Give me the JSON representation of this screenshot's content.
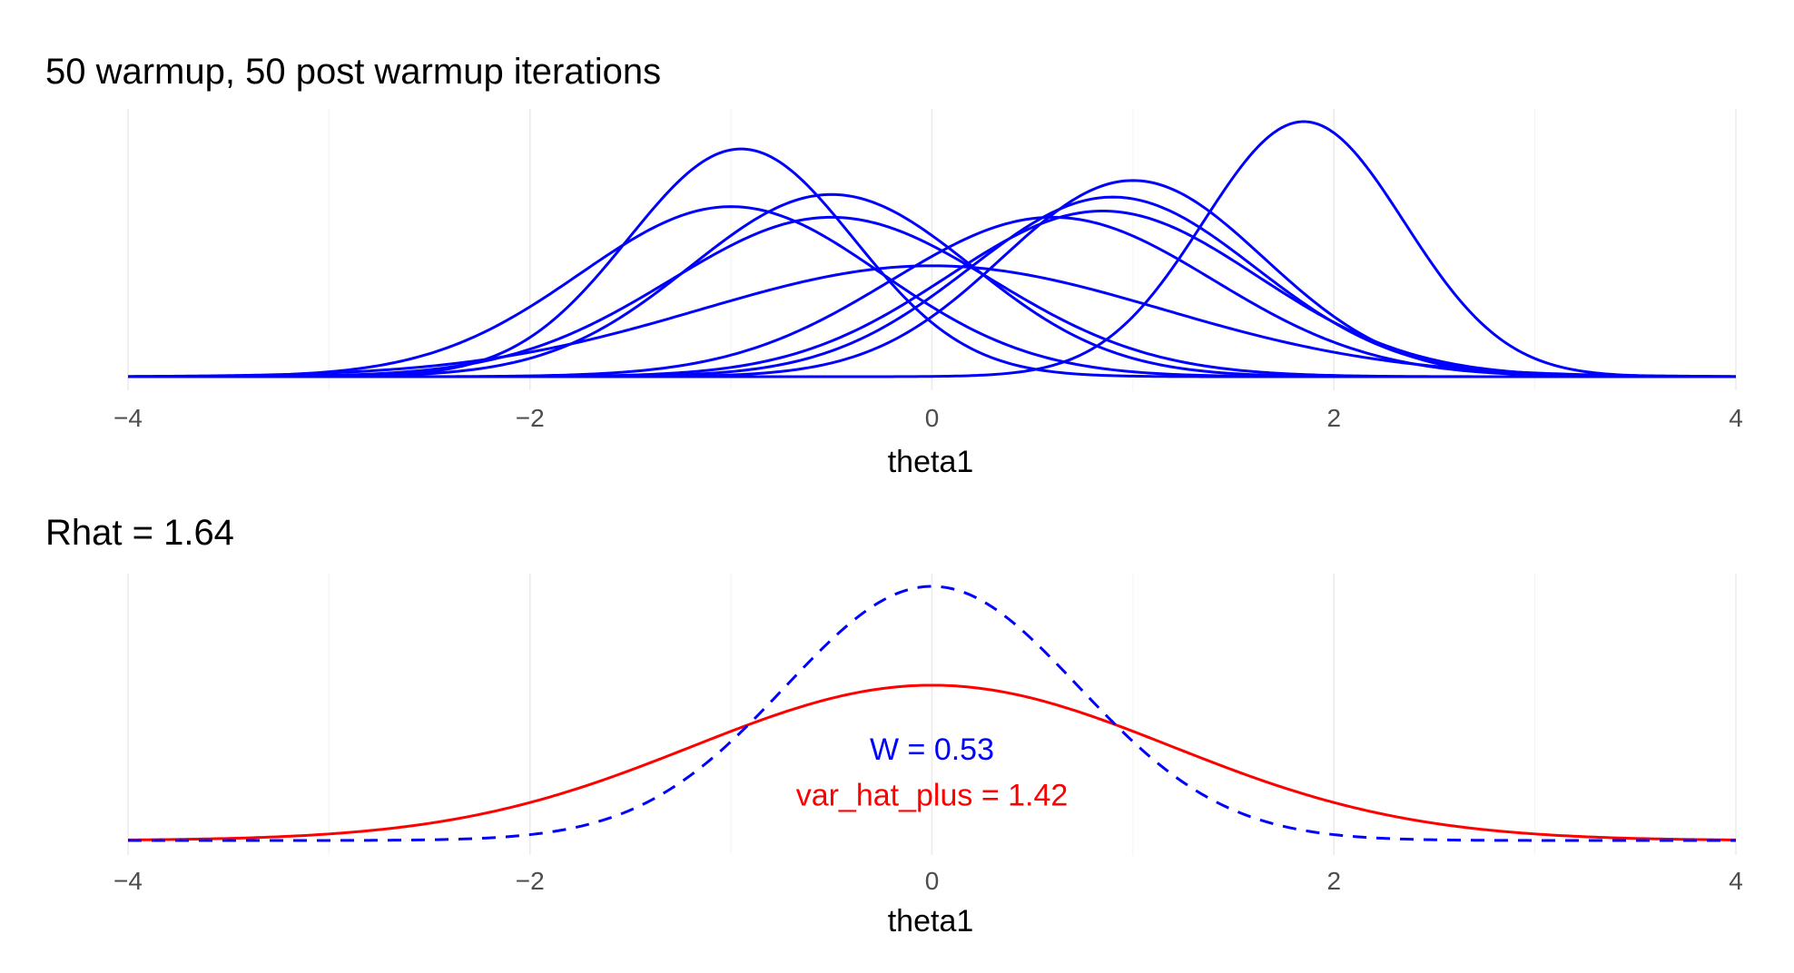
{
  "chart_data": [
    {
      "type": "line",
      "title": "50  warmup,  50 post warmup iterations",
      "xlabel": "theta1",
      "ylabel": "",
      "xlim": [
        -4,
        4
      ],
      "x_ticks": [
        -4,
        -2,
        0,
        2,
        4
      ],
      "x_tick_labels": [
        "−4",
        "−2",
        "0",
        "2",
        "4"
      ],
      "grid": "vertical",
      "line_color": "#0000ff",
      "series": [
        {
          "mean": -0.95,
          "sd": 0.56
        },
        {
          "mean": -0.5,
          "sd": 0.7
        },
        {
          "mean": -1.0,
          "sd": 0.75
        },
        {
          "mean": -0.5,
          "sd": 0.8
        },
        {
          "mean": 0.0,
          "sd": 1.15
        },
        {
          "mean": 0.6,
          "sd": 0.8
        },
        {
          "mean": 0.85,
          "sd": 0.77
        },
        {
          "mean": 0.9,
          "sd": 0.71
        },
        {
          "mean": 1.0,
          "sd": 0.65
        },
        {
          "mean": 1.85,
          "sd": 0.5
        }
      ]
    },
    {
      "type": "line",
      "title": "Rhat =  1.64",
      "xlabel": "theta1",
      "ylabel": "",
      "xlim": [
        -4,
        4
      ],
      "x_ticks": [
        -4,
        -2,
        0,
        2,
        4
      ],
      "x_tick_labels": [
        "−4",
        "−2",
        "0",
        "2",
        "4"
      ],
      "grid": "vertical",
      "series": [
        {
          "mean": 0,
          "variance": 0.53,
          "style": "dashed",
          "color": "#0000ff"
        },
        {
          "mean": 0,
          "variance": 1.42,
          "style": "solid",
          "color": "#ff0000"
        }
      ],
      "annotations": [
        {
          "text": "W =  0.53",
          "color": "#0000ff",
          "x": 0,
          "y_relative": 0.36
        },
        {
          "text": "var_hat_plus =  1.42",
          "color": "#ff0000",
          "x": 0,
          "y_relative": 0.18
        }
      ]
    }
  ]
}
